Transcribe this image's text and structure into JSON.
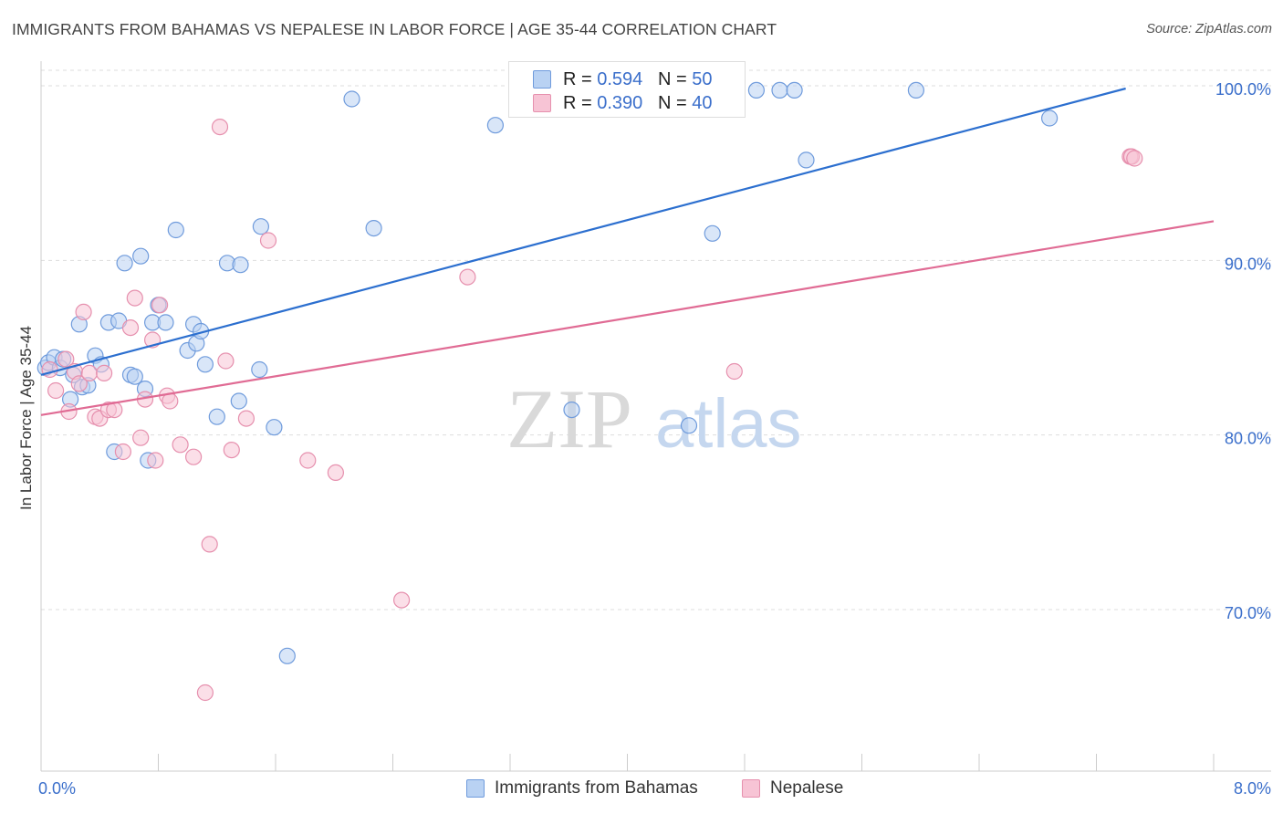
{
  "header": {
    "title": "IMMIGRANTS FROM BAHAMAS VS NEPALESE IN LABOR FORCE | AGE 35-44 CORRELATION CHART",
    "source": "Source: ZipAtlas.com"
  },
  "watermark": {
    "zip": "ZIP",
    "atlas": "atlas"
  },
  "legend": {
    "rows": [
      {
        "r_label": "R = ",
        "r_value": "0.594",
        "n_label": "N = ",
        "n_value": "50"
      },
      {
        "r_label": "R = ",
        "r_value": "0.390",
        "n_label": "N = ",
        "n_value": "40"
      }
    ]
  },
  "colors": {
    "blue_fill": "#b9d2f3",
    "blue_stroke": "#6f9bdc",
    "blue_line": "#2c6fcf",
    "pink_fill": "#f7c4d5",
    "pink_stroke": "#e690ae",
    "pink_line": "#e06b94",
    "accent_text": "#3b6fcb",
    "grid": "#dddddd"
  },
  "chart_data": {
    "type": "scatter",
    "title": "IMMIGRANTS FROM BAHAMAS VS NEPALESE IN LABOR FORCE | AGE 35-44 CORRELATION CHART",
    "xlabel": "",
    "ylabel": "In Labor Force | Age 35-44",
    "xlim": [
      0,
      8
    ],
    "ylim": [
      60,
      100.5
    ],
    "x_tick_labels": [
      "0.0%",
      "8.0%"
    ],
    "y_ticks": [
      70,
      80,
      90,
      100
    ],
    "y_tick_labels": [
      "70.0%",
      "80.0%",
      "90.0%",
      "100.0%"
    ],
    "grid": true,
    "legend_position": "bottom",
    "series": [
      {
        "name": "Immigrants from Bahamas",
        "color": "#6f9bdc",
        "trend": {
          "x": [
            0.0,
            7.4
          ],
          "y": [
            83.6,
            100.0
          ]
        },
        "points": [
          [
            0.03,
            84.0
          ],
          [
            0.05,
            84.3
          ],
          [
            0.09,
            84.6
          ],
          [
            0.13,
            84.0
          ],
          [
            0.15,
            84.5
          ],
          [
            0.2,
            82.2
          ],
          [
            0.22,
            83.6
          ],
          [
            0.26,
            86.5
          ],
          [
            0.28,
            82.9
          ],
          [
            0.32,
            83.0
          ],
          [
            0.37,
            84.7
          ],
          [
            0.41,
            84.2
          ],
          [
            0.46,
            86.6
          ],
          [
            0.5,
            79.2
          ],
          [
            0.53,
            86.7
          ],
          [
            0.57,
            90.0
          ],
          [
            0.61,
            83.6
          ],
          [
            0.64,
            83.5
          ],
          [
            0.68,
            90.4
          ],
          [
            0.71,
            82.8
          ],
          [
            0.73,
            78.7
          ],
          [
            0.76,
            86.6
          ],
          [
            0.8,
            87.6
          ],
          [
            0.85,
            86.6
          ],
          [
            0.92,
            91.9
          ],
          [
            1.0,
            85.0
          ],
          [
            1.04,
            86.5
          ],
          [
            1.06,
            85.4
          ],
          [
            1.09,
            86.1
          ],
          [
            1.12,
            84.2
          ],
          [
            1.2,
            81.2
          ],
          [
            1.27,
            90.0
          ],
          [
            1.35,
            82.1
          ],
          [
            1.36,
            89.9
          ],
          [
            1.49,
            83.9
          ],
          [
            1.5,
            92.1
          ],
          [
            1.59,
            80.6
          ],
          [
            1.68,
            67.5
          ],
          [
            2.12,
            99.4
          ],
          [
            2.27,
            92.0
          ],
          [
            3.1,
            97.9
          ],
          [
            3.62,
            81.6
          ],
          [
            4.42,
            80.7
          ],
          [
            4.58,
            91.7
          ],
          [
            4.88,
            99.9
          ],
          [
            5.04,
            99.9
          ],
          [
            5.14,
            99.9
          ],
          [
            5.22,
            95.9
          ],
          [
            5.97,
            99.9
          ],
          [
            6.88,
            98.3
          ]
        ]
      },
      {
        "name": "Nepalese",
        "color": "#e690ae",
        "trend": {
          "x": [
            0.0,
            8.0
          ],
          "y": [
            81.3,
            92.4
          ]
        },
        "points": [
          [
            0.06,
            83.9
          ],
          [
            0.1,
            82.7
          ],
          [
            0.17,
            84.5
          ],
          [
            0.19,
            81.5
          ],
          [
            0.23,
            83.8
          ],
          [
            0.26,
            83.1
          ],
          [
            0.29,
            87.2
          ],
          [
            0.33,
            83.7
          ],
          [
            0.37,
            81.2
          ],
          [
            0.4,
            81.1
          ],
          [
            0.43,
            83.7
          ],
          [
            0.46,
            81.6
          ],
          [
            0.5,
            81.6
          ],
          [
            0.56,
            79.2
          ],
          [
            0.61,
            86.3
          ],
          [
            0.64,
            88.0
          ],
          [
            0.68,
            80.0
          ],
          [
            0.71,
            82.2
          ],
          [
            0.76,
            85.6
          ],
          [
            0.78,
            78.7
          ],
          [
            0.81,
            87.6
          ],
          [
            0.86,
            82.4
          ],
          [
            0.88,
            82.1
          ],
          [
            0.95,
            79.6
          ],
          [
            1.04,
            78.9
          ],
          [
            1.12,
            65.4
          ],
          [
            1.15,
            73.9
          ],
          [
            1.22,
            97.8
          ],
          [
            1.26,
            84.4
          ],
          [
            1.3,
            79.3
          ],
          [
            1.4,
            81.1
          ],
          [
            1.55,
            91.3
          ],
          [
            1.82,
            78.7
          ],
          [
            2.01,
            78.0
          ],
          [
            2.46,
            70.7
          ],
          [
            2.91,
            89.2
          ],
          [
            4.73,
            83.8
          ],
          [
            7.43,
            96.1
          ],
          [
            7.44,
            96.1
          ],
          [
            7.46,
            96.0
          ]
        ]
      }
    ]
  }
}
